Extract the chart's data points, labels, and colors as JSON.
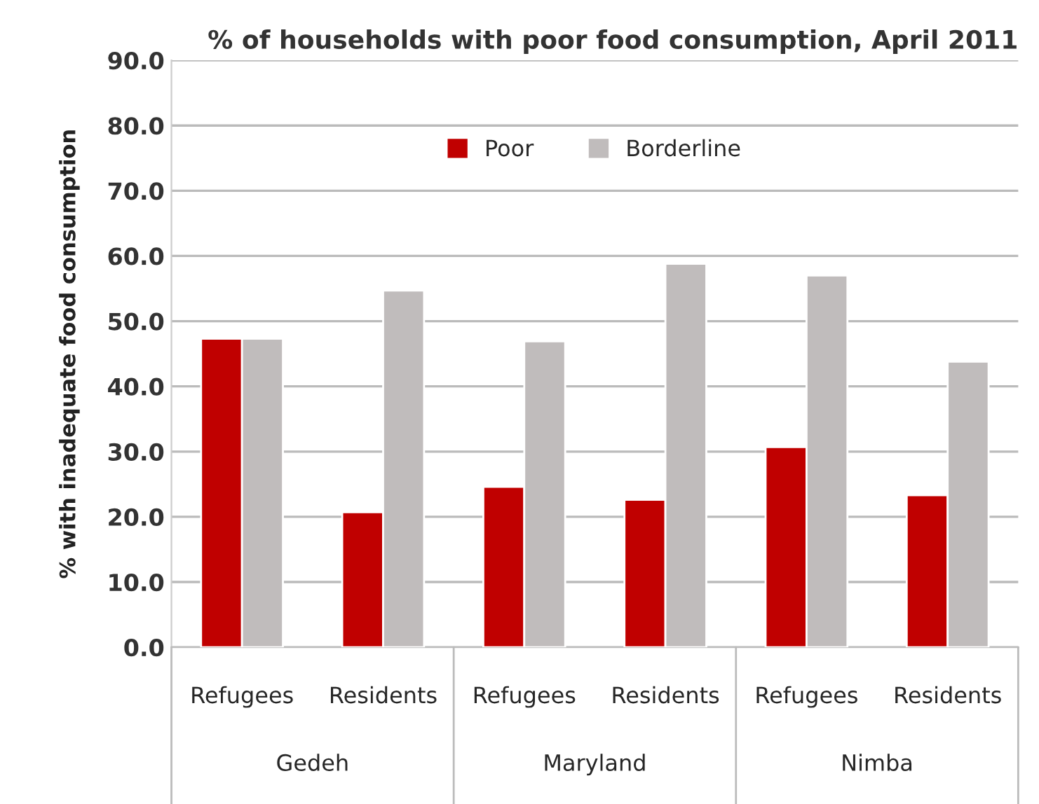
{
  "chart_data": {
    "type": "bar",
    "title": "% of households with poor food consumption, April 2011",
    "ylabel": "% with inadequate food consumption",
    "categories": [
      "Refugees",
      "Residents",
      "Refugees",
      "Residents",
      "Refugees",
      "Residents"
    ],
    "series": [
      {
        "name": "Poor",
        "color": "#c00000",
        "values": [
          47.3,
          20.7,
          24.6,
          22.6,
          30.7,
          23.3
        ]
      },
      {
        "name": "Borderline",
        "color": "#c0bcbc",
        "values": [
          47.3,
          54.7,
          46.9,
          58.8,
          57.0,
          43.8
        ]
      }
    ],
    "annotations": [
      "Gedeh",
      "Maryland",
      "Nimba"
    ],
    "ylim": [
      0,
      90
    ],
    "yticks": [
      {
        "value": 0,
        "label": "0.0"
      },
      {
        "value": 10,
        "label": "10.0"
      },
      {
        "value": 20,
        "label": "20.0"
      },
      {
        "value": 30,
        "label": "30.0"
      },
      {
        "value": 40,
        "label": "40.0"
      },
      {
        "value": 50,
        "label": "50.0"
      },
      {
        "value": 60,
        "label": "60.0"
      },
      {
        "value": 70,
        "label": "70.0"
      },
      {
        "value": 80,
        "label": "80.0"
      },
      {
        "value": 90,
        "label": "90.0"
      }
    ],
    "grid": "y",
    "legend": "top"
  }
}
